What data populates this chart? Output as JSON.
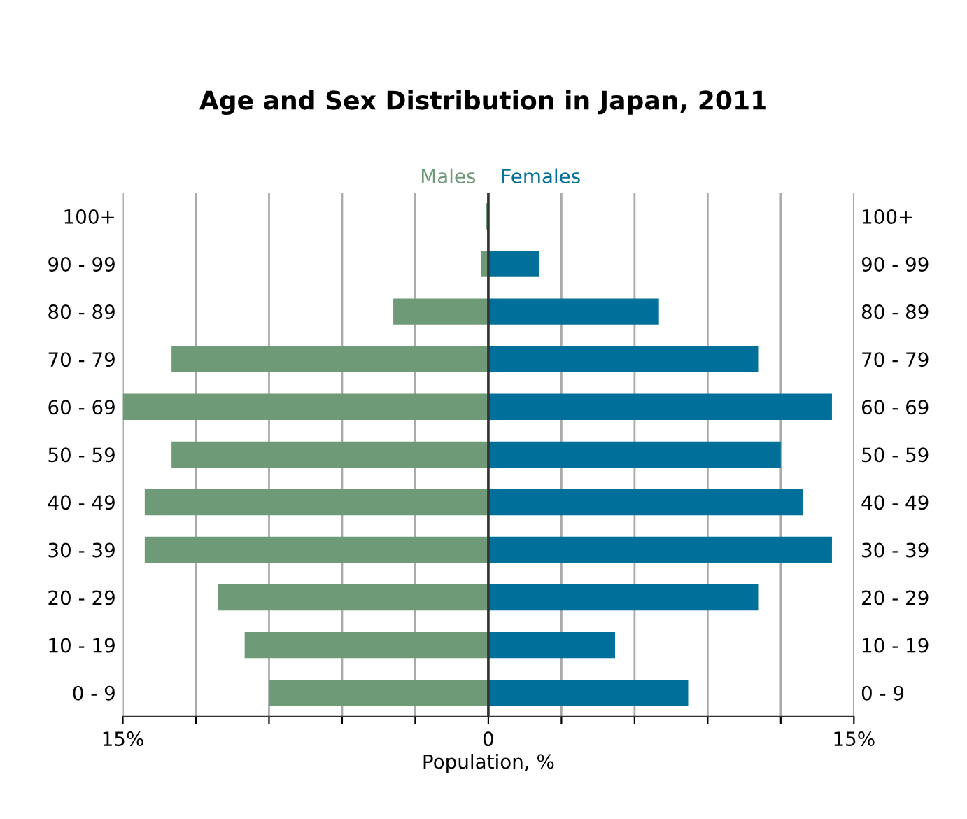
{
  "chart_data": {
    "type": "bar",
    "orientation": "horizontal",
    "title": "Age and Sex Distribution in Japan, 2011",
    "xlabel": "Population, %",
    "categories": [
      "100+",
      "90 - 99",
      "80 - 89",
      "70 - 79",
      "60 - 69",
      "50 - 59",
      "40 - 49",
      "30 - 39",
      "20 - 29",
      "10 - 19",
      "0 - 9"
    ],
    "series": [
      {
        "name": "Males",
        "color": "#6f9a78",
        "values": [
          -0.1,
          -0.3,
          -3.9,
          -13.0,
          -15.0,
          -13.0,
          -14.1,
          -14.1,
          -11.1,
          -10.0,
          -9.0
        ]
      },
      {
        "name": "Females",
        "color": "#00709a",
        "values": [
          null,
          2.1,
          7.0,
          11.1,
          14.1,
          12.0,
          12.9,
          14.1,
          11.1,
          5.2,
          8.2
        ]
      }
    ],
    "stacked": true,
    "xlim": [
      -15,
      15
    ],
    "xticks": [
      {
        "value": -15,
        "label": "15%"
      },
      {
        "value": -12,
        "label": null
      },
      {
        "value": -9,
        "label": null
      },
      {
        "value": -6,
        "label": null
      },
      {
        "value": -3,
        "label": null
      },
      0,
      {
        "value": 3,
        "label": null
      },
      {
        "value": 6,
        "label": null
      },
      {
        "value": 9,
        "label": null
      },
      {
        "value": 12,
        "label": null
      },
      {
        "value": 15,
        "label": "15%"
      }
    ],
    "ref_lines": [
      {
        "axis": "x",
        "value": 0,
        "color": "#333333"
      }
    ],
    "grid": "x",
    "legend": false
  }
}
